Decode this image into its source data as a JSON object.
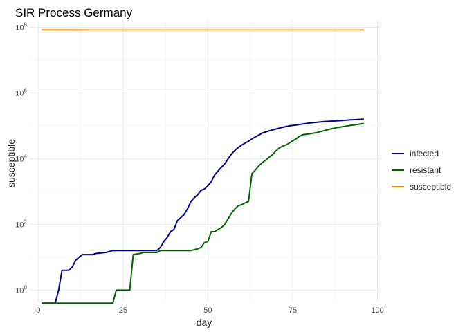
{
  "chart_data": {
    "type": "line",
    "title": "SIR Process Germany",
    "xlabel": "day",
    "ylabel": "susceptible",
    "xlim": [
      -2.5,
      100.5
    ],
    "ylim_log10": [
      -0.35,
      8.2
    ],
    "y_scale": "log10",
    "x_ticks": [
      0,
      25,
      50,
      75,
      100
    ],
    "y_ticks": [
      {
        "log": 0,
        "base": "10",
        "exp": "0"
      },
      {
        "log": 2,
        "base": "10",
        "exp": "2"
      },
      {
        "log": 4,
        "base": "10",
        "exp": "4"
      },
      {
        "log": 6,
        "base": "10",
        "exp": "6"
      },
      {
        "log": 8,
        "base": "10",
        "exp": "8"
      }
    ],
    "grid": true,
    "legend_position": "right",
    "series": [
      {
        "name": "infected",
        "color": "#00008B",
        "points": [
          [
            1,
            0.4
          ],
          [
            5,
            0.4
          ],
          [
            6,
            1
          ],
          [
            7,
            4
          ],
          [
            8,
            4
          ],
          [
            9,
            4
          ],
          [
            10,
            5
          ],
          [
            11,
            8
          ],
          [
            12,
            10
          ],
          [
            13,
            12
          ],
          [
            15,
            12
          ],
          [
            16,
            12
          ],
          [
            17,
            13
          ],
          [
            20,
            14
          ],
          [
            22,
            16
          ],
          [
            24,
            16
          ],
          [
            26,
            16
          ],
          [
            28,
            16
          ],
          [
            30,
            16
          ],
          [
            33,
            16
          ],
          [
            35,
            16
          ],
          [
            36,
            20
          ],
          [
            37,
            30
          ],
          [
            38,
            40
          ],
          [
            39,
            60
          ],
          [
            40,
            70
          ],
          [
            41,
            130
          ],
          [
            42,
            160
          ],
          [
            43,
            200
          ],
          [
            44,
            300
          ],
          [
            45,
            500
          ],
          [
            46,
            650
          ],
          [
            47,
            800
          ],
          [
            48,
            1100
          ],
          [
            49,
            1200
          ],
          [
            50,
            1500
          ],
          [
            51,
            2000
          ],
          [
            52,
            3200
          ],
          [
            53,
            4200
          ],
          [
            54,
            5500
          ],
          [
            55,
            7000
          ],
          [
            56,
            10000
          ],
          [
            57,
            14000
          ],
          [
            58,
            18000
          ],
          [
            59,
            22000
          ],
          [
            60,
            26000
          ],
          [
            61,
            30000
          ],
          [
            62,
            34000
          ],
          [
            63,
            40000
          ],
          [
            64,
            46000
          ],
          [
            65,
            52000
          ],
          [
            66,
            60000
          ],
          [
            67,
            65000
          ],
          [
            68,
            70000
          ],
          [
            70,
            80000
          ],
          [
            72,
            90000
          ],
          [
            74,
            100000
          ],
          [
            76,
            106000
          ],
          [
            78,
            114000
          ],
          [
            80,
            122000
          ],
          [
            82,
            128000
          ],
          [
            84,
            134000
          ],
          [
            86,
            138000
          ],
          [
            88,
            142000
          ],
          [
            90,
            146000
          ],
          [
            92,
            152000
          ],
          [
            94,
            157000
          ],
          [
            96,
            160000
          ]
        ]
      },
      {
        "name": "resistant",
        "color": "#006400",
        "points": [
          [
            1,
            0.4
          ],
          [
            22,
            0.4
          ],
          [
            23,
            1
          ],
          [
            27,
            1
          ],
          [
            28,
            12
          ],
          [
            30,
            13
          ],
          [
            31,
            14
          ],
          [
            35,
            14
          ],
          [
            36,
            16
          ],
          [
            40,
            16
          ],
          [
            45,
            16
          ],
          [
            46,
            17
          ],
          [
            47,
            18
          ],
          [
            48,
            20
          ],
          [
            49,
            28
          ],
          [
            50,
            30
          ],
          [
            51,
            60
          ],
          [
            52,
            60
          ],
          [
            53,
            70
          ],
          [
            54,
            80
          ],
          [
            55,
            100
          ],
          [
            56,
            150
          ],
          [
            57,
            220
          ],
          [
            58,
            300
          ],
          [
            59,
            370
          ],
          [
            60,
            400
          ],
          [
            61,
            450
          ],
          [
            62,
            500
          ],
          [
            63,
            3500
          ],
          [
            64,
            4500
          ],
          [
            65,
            6000
          ],
          [
            66,
            7500
          ],
          [
            67,
            9000
          ],
          [
            68,
            11000
          ],
          [
            69,
            13000
          ],
          [
            70,
            17000
          ],
          [
            71,
            21000
          ],
          [
            72,
            24000
          ],
          [
            73,
            26000
          ],
          [
            74,
            30000
          ],
          [
            75,
            35000
          ],
          [
            76,
            40000
          ],
          [
            77,
            48000
          ],
          [
            78,
            54000
          ],
          [
            80,
            57000
          ],
          [
            82,
            62000
          ],
          [
            84,
            70000
          ],
          [
            86,
            80000
          ],
          [
            88,
            88000
          ],
          [
            90,
            95000
          ],
          [
            92,
            103000
          ],
          [
            94,
            110000
          ],
          [
            96,
            118000
          ]
        ]
      },
      {
        "name": "susceptible",
        "color": "#FF8C00",
        "points": [
          [
            1,
            83000000
          ],
          [
            96,
            82800000
          ]
        ]
      }
    ]
  }
}
